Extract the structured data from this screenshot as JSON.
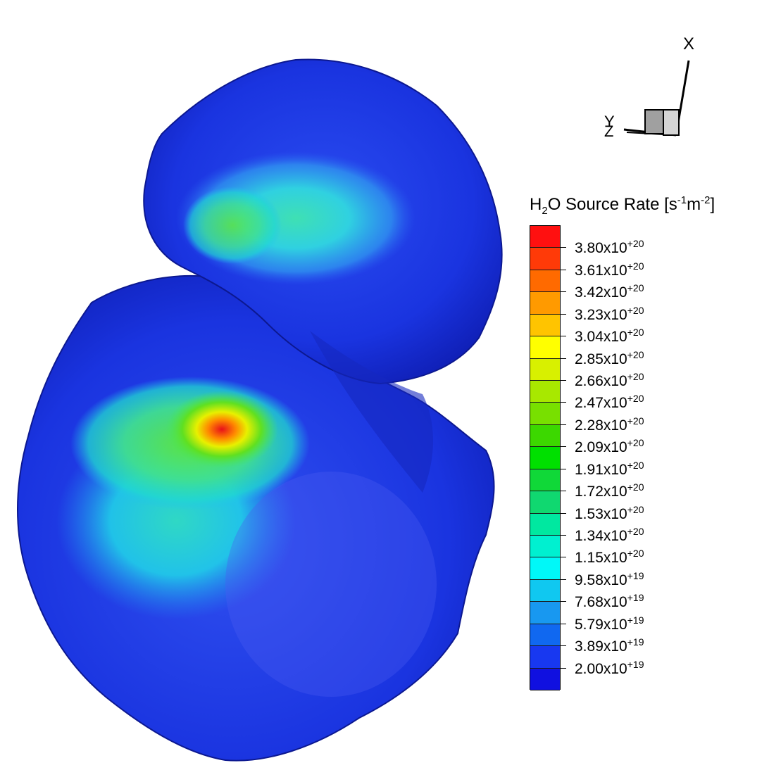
{
  "figure": {
    "description_colors": {
      "body_dark": "#1428c8",
      "body_mid": "#1e3ce8",
      "hot_red": "#e8101a"
    }
  },
  "legend": {
    "title_main": "H",
    "title_sub": "2",
    "title_mid": "O Source Rate [s",
    "title_sup1": "-1",
    "title_m": "m",
    "title_sup2": "-2",
    "title_end": "]",
    "levels": [
      {
        "mantissa": "3.80x10",
        "exp": "+20",
        "color": "#ff1010"
      },
      {
        "mantissa": "3.61x10",
        "exp": "+20",
        "color": "#ff3a08"
      },
      {
        "mantissa": "3.42x10",
        "exp": "+20",
        "color": "#ff6a00"
      },
      {
        "mantissa": "3.23x10",
        "exp": "+20",
        "color": "#ff9a00"
      },
      {
        "mantissa": "3.04x10",
        "exp": "+20",
        "color": "#ffc400"
      },
      {
        "mantissa": "2.85x10",
        "exp": "+20",
        "color": "#ffff00"
      },
      {
        "mantissa": "2.66x10",
        "exp": "+20",
        "color": "#d8f000"
      },
      {
        "mantissa": "2.47x10",
        "exp": "+20",
        "color": "#a8e800"
      },
      {
        "mantissa": "2.28x10",
        "exp": "+20",
        "color": "#78e000"
      },
      {
        "mantissa": "2.09x10",
        "exp": "+20",
        "color": "#3cd800"
      },
      {
        "mantissa": "1.91x10",
        "exp": "+20",
        "color": "#00e000"
      },
      {
        "mantissa": "1.72x10",
        "exp": "+20",
        "color": "#10d838"
      },
      {
        "mantissa": "1.53x10",
        "exp": "+20",
        "color": "#10d870"
      },
      {
        "mantissa": "1.34x10",
        "exp": "+20",
        "color": "#00e8a0"
      },
      {
        "mantissa": "1.15x10",
        "exp": "+20",
        "color": "#00f0d0"
      },
      {
        "mantissa": "9.58x10",
        "exp": "+19",
        "color": "#00f8f8"
      },
      {
        "mantissa": "7.68x10",
        "exp": "+19",
        "color": "#10c8f0"
      },
      {
        "mantissa": "5.79x10",
        "exp": "+19",
        "color": "#1898f0"
      },
      {
        "mantissa": "3.89x10",
        "exp": "+19",
        "color": "#1068f0"
      },
      {
        "mantissa": "2.00x10",
        "exp": "+19",
        "color": "#1838f0"
      },
      {
        "mantissa": "",
        "exp": "",
        "color": "#1010e0"
      }
    ]
  },
  "axes_triad": {
    "x_label": "X",
    "y_label": "Y",
    "z_label": "Z"
  }
}
